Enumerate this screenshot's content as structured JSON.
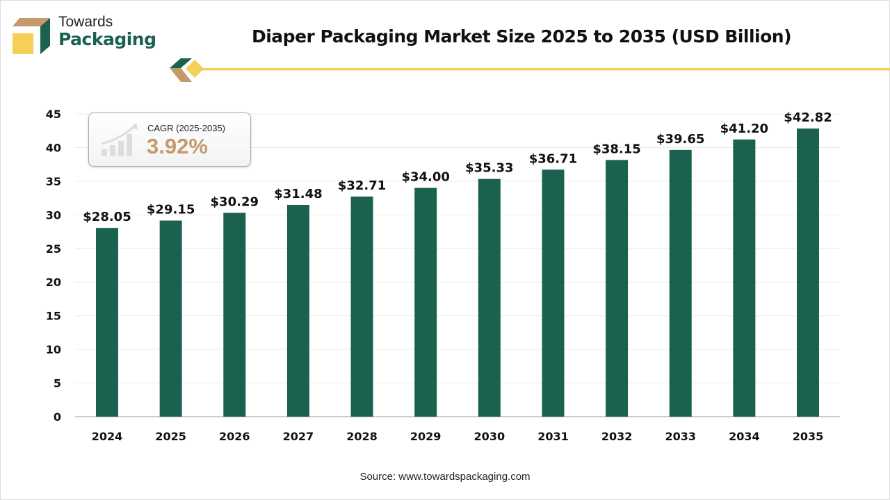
{
  "brand": {
    "line1": "Towards",
    "line2": "Packaging"
  },
  "colors": {
    "bar": "#1a6150",
    "accent_gold": "#f6cf58",
    "accent_tan": "#c49a6c"
  },
  "cagr": {
    "label": "CAGR (2025-2035)",
    "value": "3.92%",
    "icon": "growth-chart-icon"
  },
  "source": "Source: www.towardspackaging.com",
  "chart_data": {
    "type": "bar",
    "title": "Diaper Packaging Market Size 2025 to 2035 (USD Billion)",
    "categories": [
      "2024",
      "2025",
      "2026",
      "2027",
      "2028",
      "2029",
      "2030",
      "2031",
      "2032",
      "2033",
      "2034",
      "2035"
    ],
    "values": [
      28.05,
      29.15,
      30.29,
      31.48,
      32.71,
      34.0,
      35.33,
      36.71,
      38.15,
      39.65,
      41.2,
      42.82
    ],
    "data_labels": [
      "$28.05",
      "$29.15",
      "$30.29",
      "$31.48",
      "$32.71",
      "$34.00",
      "$35.33",
      "$36.71",
      "$38.15",
      "$39.65",
      "$41.20",
      "$42.82"
    ],
    "yticks": [
      0,
      5,
      10,
      15,
      20,
      25,
      30,
      35,
      40,
      45
    ],
    "ylim": [
      0,
      45
    ],
    "grid": true,
    "xlabel": "",
    "ylabel": ""
  }
}
